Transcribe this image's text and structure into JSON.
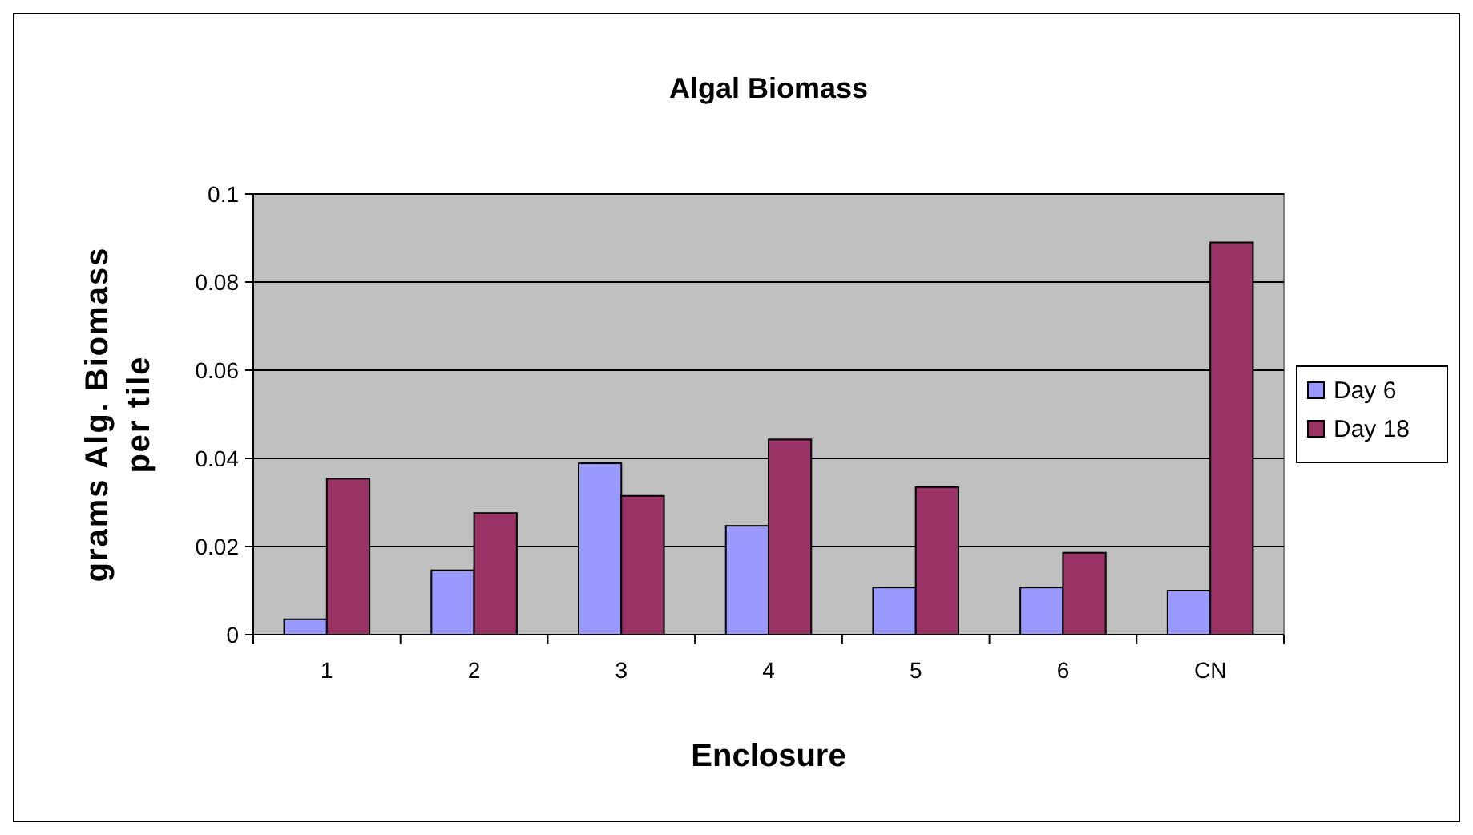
{
  "chart_data": {
    "type": "bar",
    "title": "Algal Biomass",
    "xlabel": "Enclosure",
    "ylabel": "grams Alg. Biomass per tile",
    "categories": [
      "1",
      "2",
      "3",
      "4",
      "5",
      "6",
      "CN"
    ],
    "series": [
      {
        "name": "Day 6",
        "color": "#9999ff",
        "values": [
          0.0035,
          0.0146,
          0.0389,
          0.0247,
          0.0107,
          0.0107,
          0.01
        ]
      },
      {
        "name": "Day 18",
        "color": "#993366",
        "values": [
          0.0354,
          0.0276,
          0.0315,
          0.0443,
          0.0335,
          0.0186,
          0.089
        ]
      }
    ],
    "ylim": [
      0,
      0.1
    ],
    "yticks": [
      0,
      0.02,
      0.04,
      0.06,
      0.08,
      0.1
    ],
    "grid": "y",
    "legend": "right"
  }
}
